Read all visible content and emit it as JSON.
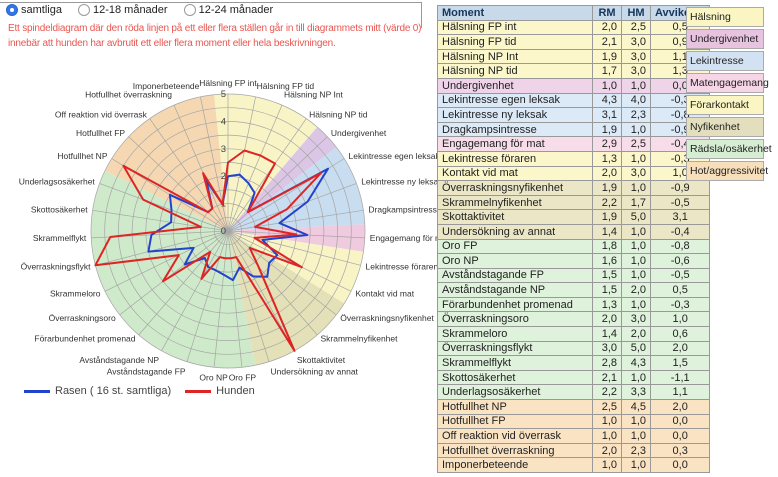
{
  "controls": {
    "radio_group": {
      "options": [
        {
          "label": "samtliga",
          "selected": true
        },
        {
          "label": "12-18 månader",
          "selected": false
        },
        {
          "label": "12-24 månader",
          "selected": false
        }
      ]
    },
    "warning_text": {
      "line1": "Ett spindeldiagram där den röda linjen på ett eller flera ställen går in till diagrammets mitt (värde 0)",
      "line2": "innebär att hunden har avbrutit ett eller flera moment eller hela beskrivningen.",
      "color": "#ea5550"
    }
  },
  "chart_data": {
    "type": "radar",
    "max": 5,
    "ring_step": 0.5,
    "ticks": [
      "0",
      "1",
      "2",
      "3",
      "4",
      "5"
    ],
    "axes": [
      "Hälsning FP int",
      "Hälsning FP tid",
      "Hälsning NP Int",
      "Hälsning NP tid",
      "Undergivenhet",
      "Lekintresse egen leksak",
      "Lekintresse ny leksak",
      "Dragkampsintresse",
      "Engagemang för mat",
      "Lekintresse föraren",
      "Kontakt vid mat",
      "Överraskningsnyfikenhet",
      "Skrammelnyfikenhet",
      "Skottaktivitet",
      "Undersökning av annat",
      "Oro FP",
      "Oro NP",
      "Avståndstagande FP",
      "Avståndstagande NP",
      "Förarbundenhet promenad",
      "Överraskningsoro",
      "Skrammeloro",
      "Överraskningsflykt",
      "Skrammelflykt",
      "Skottosäkerhet",
      "Underlagsosäkerhet",
      "Hotfullhet NP",
      "Hotfullhet FP",
      "Off reaktion vid överrask",
      "Hotfullhet överraskning",
      "Imponerbeteende"
    ],
    "series": [
      {
        "name": "Rasen ( 16 st. samtliga)",
        "color": "#2244cc",
        "values": [
          2.0,
          2.1,
          1.9,
          1.7,
          1.0,
          4.3,
          3.1,
          1.9,
          2.9,
          1.3,
          2.0,
          1.9,
          2.2,
          1.9,
          1.4,
          1.8,
          1.6,
          1.5,
          1.5,
          1.3,
          2.0,
          1.4,
          3.0,
          2.8,
          2.1,
          2.2,
          2.5,
          1.0,
          1.0,
          2.0,
          1.0
        ]
      },
      {
        "name": "Hunden",
        "color": "#dd2525",
        "values": [
          2.5,
          3.0,
          3.0,
          3.0,
          1.0,
          4.0,
          2.3,
          1.0,
          2.5,
          1.0,
          3.0,
          1.0,
          1.7,
          5.0,
          1.0,
          1.0,
          1.0,
          1.0,
          2.0,
          1.0,
          3.0,
          2.0,
          5.0,
          4.3,
          1.0,
          3.3,
          4.5,
          1.0,
          1.0,
          2.3,
          1.0
        ]
      }
    ],
    "sectors": [
      {
        "name": "Hälsning",
        "from": 0,
        "to": 3,
        "color": "#f8f4c6"
      },
      {
        "name": "Undergivenhet",
        "from": 4,
        "to": 4,
        "color": "#dbc6e6"
      },
      {
        "name": "Lekintresse",
        "from": 5,
        "to": 7,
        "color": "#c8ddf0"
      },
      {
        "name": "Matengagemang",
        "from": 8,
        "to": 8,
        "color": "#f0cade"
      },
      {
        "name": "Förarkontakt",
        "from": 9,
        "to": 10,
        "color": "#f8f4c6"
      },
      {
        "name": "Nyfikenhet",
        "from": 11,
        "to": 14,
        "color": "#e4e0b8"
      },
      {
        "name": "Rädsla/osäkerhet",
        "from": 15,
        "to": 25,
        "color": "#cfeaca"
      },
      {
        "name": "Hot/aggressivitet",
        "from": 26,
        "to": 30,
        "color": "#f5d8b2"
      }
    ]
  },
  "table": {
    "columns": [
      "Moment",
      "RM",
      "HM",
      "Avvikelse"
    ],
    "header_bg": "#c8d9e9",
    "row_colors": {
      "halsning": "#fbf7ca",
      "undergivenhet": "#eed3e9",
      "lekintresse": "#dce9f7",
      "matengagemang": "#f7dcea",
      "forarkontakt": "#fbf7ca",
      "nyfikenhet": "#ebe7c6",
      "radsla": "#dff2dc",
      "hot": "#fae3c2"
    },
    "rows": [
      {
        "moment": "Hälsning FP int",
        "rm": "2,0",
        "hm": "2,5",
        "avvikelse": "0,5",
        "cat": "halsning"
      },
      {
        "moment": "Hälsning FP tid",
        "rm": "2,1",
        "hm": "3,0",
        "avvikelse": "0,9",
        "cat": "halsning"
      },
      {
        "moment": "Hälsning NP Int",
        "rm": "1,9",
        "hm": "3,0",
        "avvikelse": "1,1",
        "cat": "halsning"
      },
      {
        "moment": "Hälsning NP tid",
        "rm": "1,7",
        "hm": "3,0",
        "avvikelse": "1,3",
        "cat": "halsning"
      },
      {
        "moment": "Undergivenhet",
        "rm": "1,0",
        "hm": "1,0",
        "avvikelse": "0,0",
        "cat": "undergivenhet"
      },
      {
        "moment": "Lekintresse egen leksak",
        "rm": "4,3",
        "hm": "4,0",
        "avvikelse": "-0,3",
        "cat": "lekintresse"
      },
      {
        "moment": "Lekintresse ny leksak",
        "rm": "3,1",
        "hm": "2,3",
        "avvikelse": "-0,8",
        "cat": "lekintresse"
      },
      {
        "moment": "Dragkampsintresse",
        "rm": "1,9",
        "hm": "1,0",
        "avvikelse": "-0,9",
        "cat": "lekintresse"
      },
      {
        "moment": "Engagemang för mat",
        "rm": "2,9",
        "hm": "2,5",
        "avvikelse": "-0,4",
        "cat": "matengagemang"
      },
      {
        "moment": "Lekintresse föraren",
        "rm": "1,3",
        "hm": "1,0",
        "avvikelse": "-0,3",
        "cat": "forarkontakt"
      },
      {
        "moment": "Kontakt vid mat",
        "rm": "2,0",
        "hm": "3,0",
        "avvikelse": "1,0",
        "cat": "forarkontakt"
      },
      {
        "moment": "Överraskningsnyfikenhet",
        "rm": "1,9",
        "hm": "1,0",
        "avvikelse": "-0,9",
        "cat": "nyfikenhet"
      },
      {
        "moment": "Skrammelnyfikenhet",
        "rm": "2,2",
        "hm": "1,7",
        "avvikelse": "-0,5",
        "cat": "nyfikenhet"
      },
      {
        "moment": "Skottaktivitet",
        "rm": "1,9",
        "hm": "5,0",
        "avvikelse": "3,1",
        "cat": "nyfikenhet"
      },
      {
        "moment": "Undersökning av annat",
        "rm": "1,4",
        "hm": "1,0",
        "avvikelse": "-0,4",
        "cat": "nyfikenhet"
      },
      {
        "moment": "Oro FP",
        "rm": "1,8",
        "hm": "1,0",
        "avvikelse": "-0,8",
        "cat": "radsla"
      },
      {
        "moment": "Oro NP",
        "rm": "1,6",
        "hm": "1,0",
        "avvikelse": "-0,6",
        "cat": "radsla"
      },
      {
        "moment": "Avståndstagande FP",
        "rm": "1,5",
        "hm": "1,0",
        "avvikelse": "-0,5",
        "cat": "radsla"
      },
      {
        "moment": "Avståndstagande NP",
        "rm": "1,5",
        "hm": "2,0",
        "avvikelse": "0,5",
        "cat": "radsla"
      },
      {
        "moment": "Förarbundenhet promenad",
        "rm": "1,3",
        "hm": "1,0",
        "avvikelse": "-0,3",
        "cat": "radsla"
      },
      {
        "moment": "Överraskningsoro",
        "rm": "2,0",
        "hm": "3,0",
        "avvikelse": "1,0",
        "cat": "radsla"
      },
      {
        "moment": "Skrammeloro",
        "rm": "1,4",
        "hm": "2,0",
        "avvikelse": "0,6",
        "cat": "radsla"
      },
      {
        "moment": "Överraskningsflykt",
        "rm": "3,0",
        "hm": "5,0",
        "avvikelse": "2,0",
        "cat": "radsla"
      },
      {
        "moment": "Skrammelflykt",
        "rm": "2,8",
        "hm": "4,3",
        "avvikelse": "1,5",
        "cat": "radsla"
      },
      {
        "moment": "Skottosäkerhet",
        "rm": "2,1",
        "hm": "1,0",
        "avvikelse": "-1,1",
        "cat": "radsla"
      },
      {
        "moment": "Underlagsosäkerhet",
        "rm": "2,2",
        "hm": "3,3",
        "avvikelse": "1,1",
        "cat": "radsla"
      },
      {
        "moment": "Hotfullhet NP",
        "rm": "2,5",
        "hm": "4,5",
        "avvikelse": "2,0",
        "cat": "hot"
      },
      {
        "moment": "Hotfullhet FP",
        "rm": "1,0",
        "hm": "1,0",
        "avvikelse": "0,0",
        "cat": "hot"
      },
      {
        "moment": "Off reaktion vid överrask",
        "rm": "1,0",
        "hm": "1,0",
        "avvikelse": "0,0",
        "cat": "hot"
      },
      {
        "moment": "Hotfullhet överraskning",
        "rm": "2,0",
        "hm": "2,3",
        "avvikelse": "0,3",
        "cat": "hot"
      },
      {
        "moment": "Imponerbeteende",
        "rm": "1,0",
        "hm": "1,0",
        "avvikelse": "0,0",
        "cat": "hot"
      }
    ]
  },
  "category_legend": {
    "items": [
      {
        "label": "Hälsning",
        "color": "#faf5c3"
      },
      {
        "label": "Undergivenhet",
        "color": "#e7c3df"
      },
      {
        "label": "Lekintresse",
        "color": "#d3e2f2"
      },
      {
        "label": "Matengagemang",
        "color": "#f6d5e6"
      },
      {
        "label": "Förarkontakt",
        "color": "#faf5c3"
      },
      {
        "label": "Nyfikenhet",
        "color": "#e3dfbe"
      },
      {
        "label": "Rädsla/osäkerhet",
        "color": "#d5eed2"
      },
      {
        "label": "Hot/aggressivitet",
        "color": "#f8dfbc"
      }
    ]
  }
}
